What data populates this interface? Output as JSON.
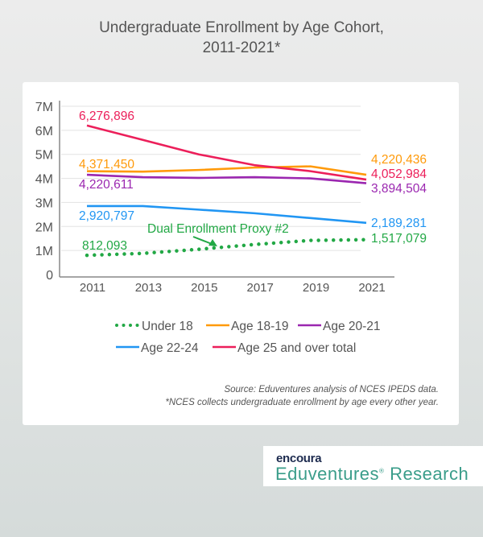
{
  "chart_data": {
    "type": "line",
    "title": "Undergraduate Enrollment by Age Cohort, 2011-2021*",
    "title_lines": [
      "Undergraduate Enrollment by Age Cohort,",
      "2011-2021*"
    ],
    "x": [
      2011,
      2013,
      2015,
      2017,
      2019,
      2021
    ],
    "x_tick_labels": [
      "2011",
      "2013",
      "2015",
      "2017",
      "2019",
      "2021"
    ],
    "y_tick_labels": [
      "0",
      "1M",
      "2M",
      "3M",
      "4M",
      "5M",
      "6M",
      "7M"
    ],
    "ylim": [
      0,
      7000000
    ],
    "grid": "horizontal",
    "legend_position": "bottom",
    "series": [
      {
        "name": "Under 18",
        "color": "#22a845",
        "style": "dotted",
        "values": [
          800000,
          880000,
          1050000,
          1250000,
          1420000,
          1450000
        ],
        "start_label": "812,093",
        "end_label": "1,517,079"
      },
      {
        "name": "Age 18-19",
        "color": "#ff9a0a",
        "style": "solid",
        "values": [
          4300000,
          4280000,
          4350000,
          4450000,
          4500000,
          4150000
        ],
        "start_label": "4,371,450",
        "end_label": "4,220,436"
      },
      {
        "name": "Age 20-21",
        "color": "#9b27b0",
        "style": "solid",
        "values": [
          4150000,
          4050000,
          4020000,
          4050000,
          4000000,
          3800000
        ],
        "start_label": "4,220,611",
        "end_label": "3,894,504"
      },
      {
        "name": "Age 22-24",
        "color": "#2196f3",
        "style": "solid",
        "values": [
          2850000,
          2850000,
          2700000,
          2550000,
          2350000,
          2150000
        ],
        "start_label": "2,920,797",
        "end_label": "2,189,281"
      },
      {
        "name": "Age 25 and over total",
        "color": "#ec1f5a",
        "style": "solid",
        "values": [
          6200000,
          5600000,
          5000000,
          4550000,
          4300000,
          3950000
        ],
        "start_label": "6,276,896",
        "end_label": "4,052,984"
      }
    ],
    "annotations": [
      {
        "text": "Dual Enrollment Proxy #2",
        "color": "#22a845"
      }
    ],
    "source_lines": [
      "Source: Eduventures analysis of NCES IPEDS data.",
      "*NCES collects undergraduate enrollment by age every other year."
    ]
  },
  "logo": {
    "brand": "encoura",
    "product": "Eduventures",
    "suffix": "Research"
  }
}
